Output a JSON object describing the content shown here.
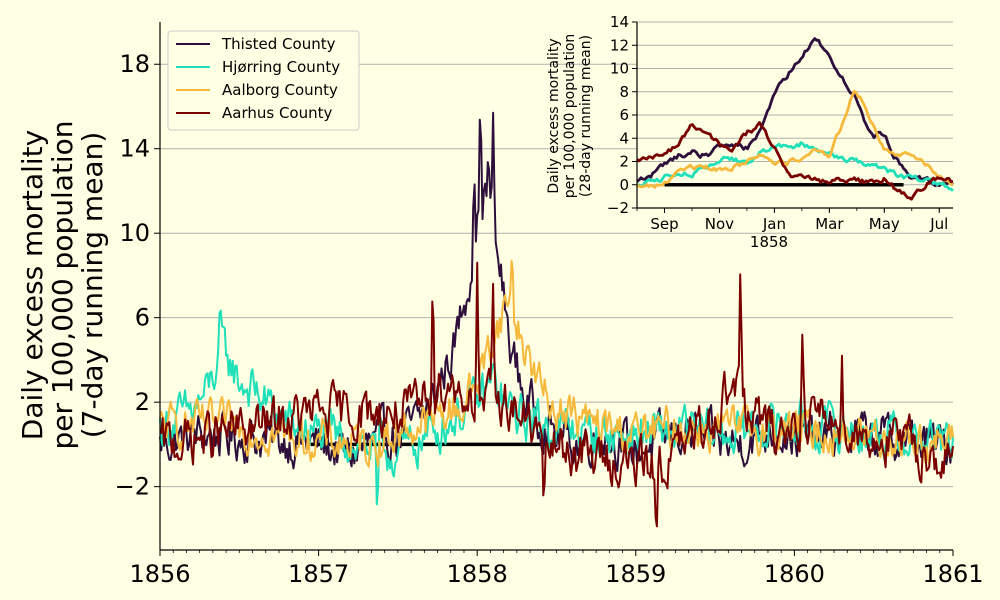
{
  "colors": {
    "background": "#ffffe4",
    "thisted": "#2e0f3c",
    "hjorring": "#1fe0b8",
    "aalborg": "#f6b93b",
    "aarhus": "#7a0000",
    "grid": "#b0b0b0",
    "baseline": "#000000"
  },
  "chart_data": [
    {
      "type": "line",
      "title": "",
      "ylabel_lines": [
        "Daily excess mortality",
        "per 100,000 population",
        "(7-day running mean)"
      ],
      "xlabel": "",
      "xlim": [
        1856,
        1861
      ],
      "ylim": [
        -5,
        20
      ],
      "x_ticks": [
        1856,
        1857,
        1858,
        1859,
        1860,
        1861
      ],
      "y_ticks": [
        -2,
        2,
        6,
        10,
        14,
        18
      ],
      "y_tick_labels": [
        "−2",
        "2",
        "6",
        "10",
        "14",
        "18"
      ],
      "grid": "horizontal",
      "legend": {
        "position": "top-left",
        "entries": [
          "Thisted County",
          "Hjørring County",
          "Aalborg County",
          "Aarhus County"
        ]
      },
      "baseline": {
        "y": 0,
        "x": [
          1856.95,
          1858.45
        ]
      },
      "series": [
        {
          "name": "Thisted County",
          "color_key": "thisted",
          "x": [
            1856.0,
            1856.25,
            1856.5,
            1856.75,
            1857.0,
            1857.2,
            1857.4,
            1857.55,
            1857.7,
            1857.85,
            1857.95,
            1858.0,
            1858.05,
            1858.1,
            1858.15,
            1858.2,
            1858.3,
            1858.45,
            1858.6,
            1858.8,
            1859.0,
            1859.3,
            1859.6,
            1859.9,
            1860.1,
            1860.4,
            1860.7,
            1861.0
          ],
          "y": [
            0.0,
            0.5,
            0.3,
            0.2,
            0.0,
            -0.5,
            0.3,
            0.5,
            1.8,
            4.5,
            8.0,
            10.5,
            12.0,
            10.0,
            8.0,
            5.0,
            2.2,
            0.8,
            0.0,
            0.5,
            -0.3,
            0.6,
            0.0,
            0.7,
            0.2,
            0.5,
            0.2,
            0.0
          ],
          "noise": 1.2,
          "spikes": [
            [
              1858.02,
              16.7
            ],
            [
              1858.07,
              14.0
            ],
            [
              1857.98,
              13.2
            ],
            [
              1858.1,
              15.7
            ]
          ]
        },
        {
          "name": "Hjørring County",
          "color_key": "hjorring",
          "x": [
            1856.0,
            1856.2,
            1856.3,
            1856.4,
            1856.5,
            1856.6,
            1856.8,
            1857.0,
            1857.3,
            1857.5,
            1857.8,
            1858.0,
            1858.1,
            1858.2,
            1858.4,
            1858.7,
            1859.0,
            1859.3,
            1859.6,
            1859.9,
            1860.2,
            1860.5,
            1860.8,
            1861.0
          ],
          "y": [
            0.8,
            1.5,
            2.5,
            4.5,
            3.0,
            2.5,
            1.0,
            0.5,
            0.0,
            -0.5,
            1.0,
            2.0,
            3.0,
            1.5,
            1.0,
            0.5,
            0.4,
            0.6,
            0.5,
            1.0,
            0.8,
            0.5,
            0.2,
            0.0
          ],
          "noise": 1.2,
          "spikes": [
            [
              1856.38,
              6.9
            ],
            [
              1857.37,
              -4.0
            ]
          ]
        },
        {
          "name": "Aalborg County",
          "color_key": "aalborg",
          "x": [
            1856.0,
            1856.3,
            1856.6,
            1857.0,
            1857.3,
            1857.6,
            1857.9,
            1858.0,
            1858.1,
            1858.2,
            1858.3,
            1858.45,
            1858.7,
            1859.0,
            1859.3,
            1859.6,
            1859.9,
            1860.3,
            1860.6,
            1861.0
          ],
          "y": [
            0.8,
            1.0,
            0.7,
            0.2,
            0.0,
            0.8,
            1.8,
            3.0,
            5.0,
            7.0,
            4.5,
            2.0,
            1.0,
            0.5,
            0.8,
            0.7,
            0.8,
            0.5,
            0.4,
            0.0
          ],
          "noise": 1.1,
          "spikes": [
            [
              1858.22,
              9.3
            ]
          ]
        },
        {
          "name": "Aarhus County",
          "color_key": "aarhus",
          "x": [
            1856.0,
            1856.4,
            1856.7,
            1857.0,
            1857.3,
            1857.6,
            1857.8,
            1858.0,
            1858.2,
            1858.45,
            1858.7,
            1859.0,
            1859.15,
            1859.4,
            1859.62,
            1859.7,
            1859.9,
            1860.1,
            1860.4,
            1860.7,
            1861.0
          ],
          "y": [
            0.0,
            0.5,
            1.0,
            1.5,
            1.5,
            1.5,
            3.0,
            2.0,
            2.0,
            0.0,
            -0.5,
            -1.0,
            -1.0,
            0.5,
            3.0,
            1.5,
            0.5,
            1.5,
            0.5,
            0.0,
            -1.0
          ],
          "noise": 1.3,
          "spikes": [
            [
              1857.72,
              8.8
            ],
            [
              1858.0,
              8.6
            ],
            [
              1858.1,
              7.6
            ],
            [
              1859.66,
              8.8
            ],
            [
              1859.13,
              -4.8
            ],
            [
              1858.42,
              -3.8
            ],
            [
              1860.05,
              5.2
            ],
            [
              1860.3,
              4.2
            ]
          ]
        }
      ]
    },
    {
      "type": "line",
      "title": "",
      "ylabel_lines": [
        "Daily excess mortality",
        "per 100,000 population",
        "(28-day running mean)"
      ],
      "xlabel": "1858",
      "xlim": [
        0,
        11.5
      ],
      "ylim": [
        -2,
        14
      ],
      "x_ticks": [
        1,
        3,
        5,
        7,
        9,
        11
      ],
      "x_tick_labels": [
        "Sep",
        "Nov",
        "Jan",
        "Mar",
        "May",
        "Jul"
      ],
      "y_ticks": [
        -2,
        0,
        2,
        4,
        6,
        8,
        10,
        12,
        14
      ],
      "grid": "horizontal",
      "baseline": {
        "y": 0,
        "x": [
          1,
          9.7
        ]
      },
      "series": [
        {
          "name": "Thisted County",
          "color_key": "thisted",
          "x": [
            0,
            0.5,
            1,
            1.5,
            2,
            2.5,
            3,
            3.5,
            4,
            4.5,
            5,
            5.5,
            6,
            6.5,
            6.9,
            7.3,
            7.7,
            8,
            8.3,
            8.6,
            9,
            9.3,
            9.7,
            10,
            10.5,
            11,
            11.5
          ],
          "y": [
            0.3,
            0.8,
            1.8,
            2.5,
            2.8,
            2.5,
            3.3,
            3.5,
            3.2,
            4.5,
            8.0,
            9.5,
            11.0,
            12.5,
            11.5,
            9.5,
            8.5,
            7.5,
            5.5,
            4.2,
            4.5,
            2.5,
            1.5,
            0.5,
            0.4,
            0.2,
            0.0
          ],
          "noise": 0.3
        },
        {
          "name": "Hjørring County",
          "color_key": "hjorring",
          "x": [
            0,
            0.5,
            1,
            1.5,
            2,
            2.5,
            3,
            3.5,
            4,
            4.5,
            5,
            5.5,
            6,
            6.5,
            7,
            7.5,
            8,
            8.5,
            9,
            9.5,
            10,
            10.5,
            11,
            11.5
          ],
          "y": [
            0.0,
            0.2,
            0.7,
            1.0,
            1.0,
            1.3,
            2.0,
            2.2,
            2.0,
            2.8,
            3.5,
            3.2,
            3.5,
            3.0,
            2.5,
            2.2,
            2.0,
            1.8,
            1.5,
            0.8,
            0.5,
            0.3,
            0.0,
            -0.3
          ],
          "noise": 0.3
        },
        {
          "name": "Aalborg County",
          "color_key": "aalborg",
          "x": [
            0,
            0.5,
            1,
            1.5,
            2,
            2.5,
            3,
            3.5,
            4,
            4.5,
            5,
            5.5,
            6,
            6.5,
            7,
            7.5,
            7.9,
            8.3,
            8.7,
            9,
            9.5,
            10,
            10.5,
            11,
            11.5
          ],
          "y": [
            0.0,
            -0.2,
            0.2,
            1.0,
            1.5,
            1.5,
            1.2,
            1.5,
            2.0,
            2.5,
            2.0,
            2.0,
            2.3,
            3.2,
            2.5,
            5.5,
            8.2,
            7.0,
            4.5,
            3.0,
            2.5,
            2.5,
            1.8,
            0.8,
            0.0
          ],
          "noise": 0.25
        },
        {
          "name": "Aarhus County",
          "color_key": "aarhus",
          "x": [
            0,
            0.5,
            1,
            1.5,
            2,
            2.5,
            3,
            3.5,
            4,
            4.5,
            5,
            5.5,
            6,
            6.5,
            7,
            7.5,
            8,
            8.5,
            9,
            9.5,
            10,
            10.5,
            11,
            11.5
          ],
          "y": [
            2.2,
            2.5,
            2.4,
            3.5,
            5.3,
            4.5,
            3.5,
            3.0,
            4.5,
            5.2,
            3.0,
            1.0,
            0.5,
            0.3,
            0.2,
            0.4,
            0.3,
            0.2,
            0.5,
            -0.5,
            -1.0,
            0.0,
            0.5,
            0.2
          ],
          "noise": 0.3
        }
      ]
    }
  ]
}
